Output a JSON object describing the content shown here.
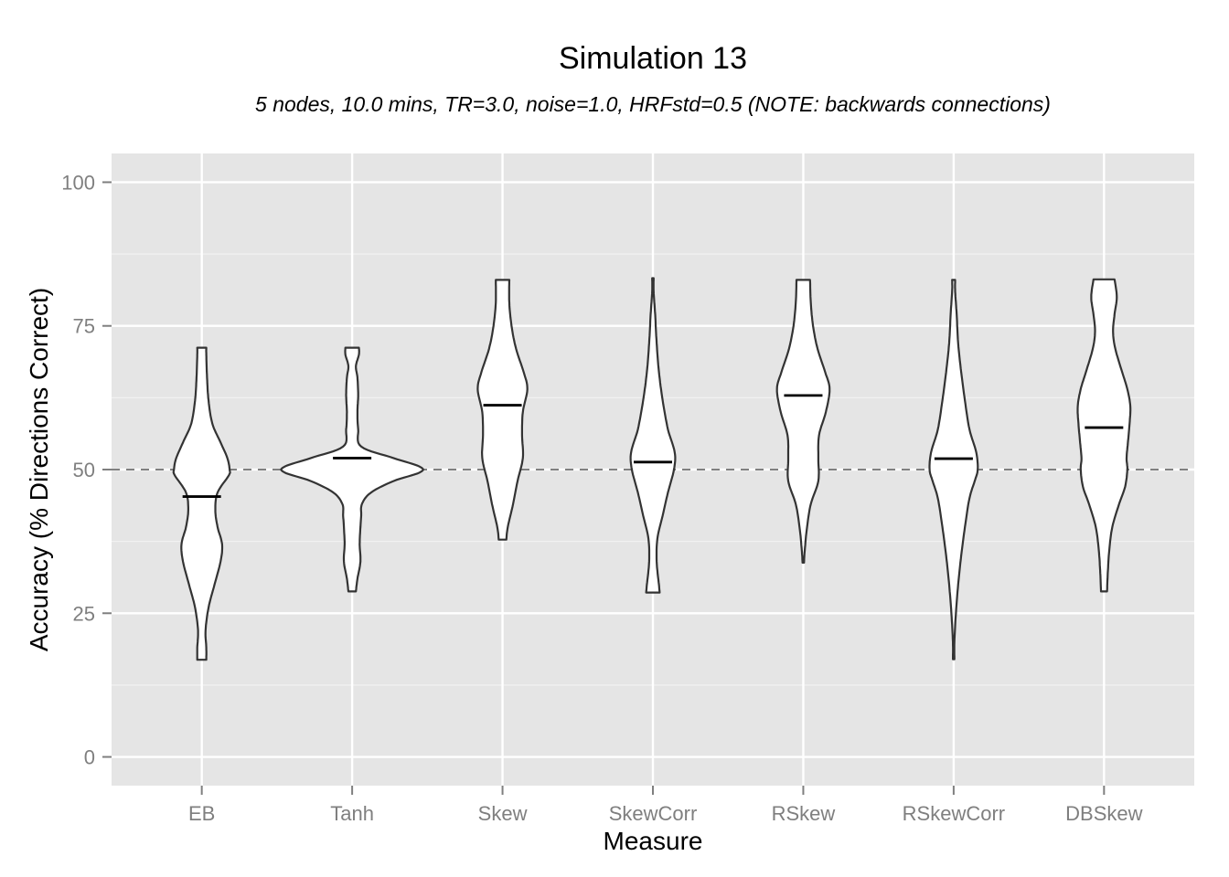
{
  "chart_data": {
    "type": "violin",
    "title": "Simulation 13",
    "subtitle": "5 nodes, 10.0 mins, TR=3.0, noise=1.0, HRFstd=0.5 (NOTE: backwards connections)",
    "xlabel": "Measure",
    "ylabel": "Accuracy (% Directions Correct)",
    "ylim": [
      -5,
      105
    ],
    "yticks": [
      0,
      25,
      50,
      75,
      100
    ],
    "grid": true,
    "reference_line": {
      "y": 50,
      "style": "dashed"
    },
    "categories": [
      "EB",
      "Tanh",
      "Skew",
      "SkewCorr",
      "RSkew",
      "RSkewCorr",
      "DBSkew"
    ],
    "medians": [
      45.3,
      52.0,
      61.2,
      51.3,
      62.9,
      51.9,
      57.3
    ],
    "ranges": [
      [
        16.9,
        71.2
      ],
      [
        28.8,
        71.2
      ],
      [
        37.8,
        83.0
      ],
      [
        28.6,
        83.3
      ],
      [
        33.8,
        83.0
      ],
      [
        17.0,
        83.0
      ],
      [
        28.8,
        83.1
      ]
    ],
    "violin_widths": [
      [
        [
          16.9,
          0.06
        ],
        [
          19,
          0.06
        ],
        [
          22,
          0.05
        ],
        [
          26,
          0.09
        ],
        [
          30,
          0.17
        ],
        [
          34,
          0.25
        ],
        [
          37,
          0.27
        ],
        [
          40,
          0.21
        ],
        [
          43,
          0.18
        ],
        [
          46,
          0.21
        ],
        [
          49,
          0.36
        ],
        [
          50,
          0.37
        ],
        [
          52,
          0.34
        ],
        [
          55,
          0.24
        ],
        [
          58,
          0.14
        ],
        [
          62,
          0.09
        ],
        [
          66,
          0.07
        ],
        [
          70,
          0.06
        ],
        [
          71.2,
          0.06
        ]
      ],
      [
        [
          28.8,
          0.05
        ],
        [
          31,
          0.07
        ],
        [
          34,
          0.11
        ],
        [
          37,
          0.1
        ],
        [
          40,
          0.11
        ],
        [
          42,
          0.12
        ],
        [
          44,
          0.13
        ],
        [
          46,
          0.25
        ],
        [
          48,
          0.55
        ],
        [
          49.5,
          0.9
        ],
        [
          50.5,
          0.9
        ],
        [
          52,
          0.55
        ],
        [
          54,
          0.12
        ],
        [
          57,
          0.08
        ],
        [
          60,
          0.07
        ],
        [
          63,
          0.08
        ],
        [
          66,
          0.07
        ],
        [
          68,
          0.05
        ],
        [
          70,
          0.09
        ],
        [
          71.2,
          0.09
        ]
      ],
      [
        [
          37.8,
          0.05
        ],
        [
          40,
          0.07
        ],
        [
          44,
          0.14
        ],
        [
          48,
          0.2
        ],
        [
          52,
          0.27
        ],
        [
          56,
          0.26
        ],
        [
          60,
          0.27
        ],
        [
          64,
          0.33
        ],
        [
          67,
          0.28
        ],
        [
          71,
          0.18
        ],
        [
          75,
          0.12
        ],
        [
          79,
          0.09
        ],
        [
          83,
          0.09
        ]
      ],
      [
        [
          28.6,
          0.09
        ],
        [
          30,
          0.08
        ],
        [
          34,
          0.05
        ],
        [
          38,
          0.06
        ],
        [
          42,
          0.13
        ],
        [
          46,
          0.2
        ],
        [
          50,
          0.28
        ],
        [
          53,
          0.29
        ],
        [
          57,
          0.2
        ],
        [
          62,
          0.13
        ],
        [
          67,
          0.08
        ],
        [
          72,
          0.05
        ],
        [
          77,
          0.03
        ],
        [
          81,
          0.01
        ],
        [
          83.3,
          0.01
        ]
      ],
      [
        [
          33.8,
          0.01
        ],
        [
          36,
          0.02
        ],
        [
          40,
          0.05
        ],
        [
          44,
          0.1
        ],
        [
          48,
          0.2
        ],
        [
          52,
          0.2
        ],
        [
          56,
          0.21
        ],
        [
          60,
          0.3
        ],
        [
          64,
          0.35
        ],
        [
          67,
          0.29
        ],
        [
          71,
          0.19
        ],
        [
          75,
          0.13
        ],
        [
          79,
          0.1
        ],
        [
          83,
          0.09
        ]
      ],
      [
        [
          17,
          0.01
        ],
        [
          20,
          0.01
        ],
        [
          25,
          0.03
        ],
        [
          30,
          0.06
        ],
        [
          35,
          0.1
        ],
        [
          40,
          0.15
        ],
        [
          45,
          0.21
        ],
        [
          48,
          0.28
        ],
        [
          50,
          0.32
        ],
        [
          53,
          0.3
        ],
        [
          57,
          0.21
        ],
        [
          62,
          0.15
        ],
        [
          67,
          0.1
        ],
        [
          72,
          0.06
        ],
        [
          77,
          0.04
        ],
        [
          81,
          0.02
        ],
        [
          83,
          0.02
        ]
      ],
      [
        [
          28.8,
          0.04
        ],
        [
          32,
          0.05
        ],
        [
          36,
          0.07
        ],
        [
          40,
          0.11
        ],
        [
          44,
          0.2
        ],
        [
          47,
          0.28
        ],
        [
          50,
          0.31
        ],
        [
          52,
          0.3
        ],
        [
          55,
          0.32
        ],
        [
          58,
          0.34
        ],
        [
          61,
          0.35
        ],
        [
          64,
          0.31
        ],
        [
          67,
          0.24
        ],
        [
          71,
          0.15
        ],
        [
          74,
          0.12
        ],
        [
          77,
          0.14
        ],
        [
          80,
          0.17
        ],
        [
          83.1,
          0.14
        ]
      ]
    ]
  },
  "colors": {
    "panel_background": "#e5e5e5",
    "grid_major": "#ffffff",
    "grid_minor": "#f2f2f2",
    "violin_fill": "#ffffff",
    "violin_stroke": "#333333",
    "median": "#000000",
    "reference_line": "#808080",
    "tick_label": "#7f7f7f"
  }
}
